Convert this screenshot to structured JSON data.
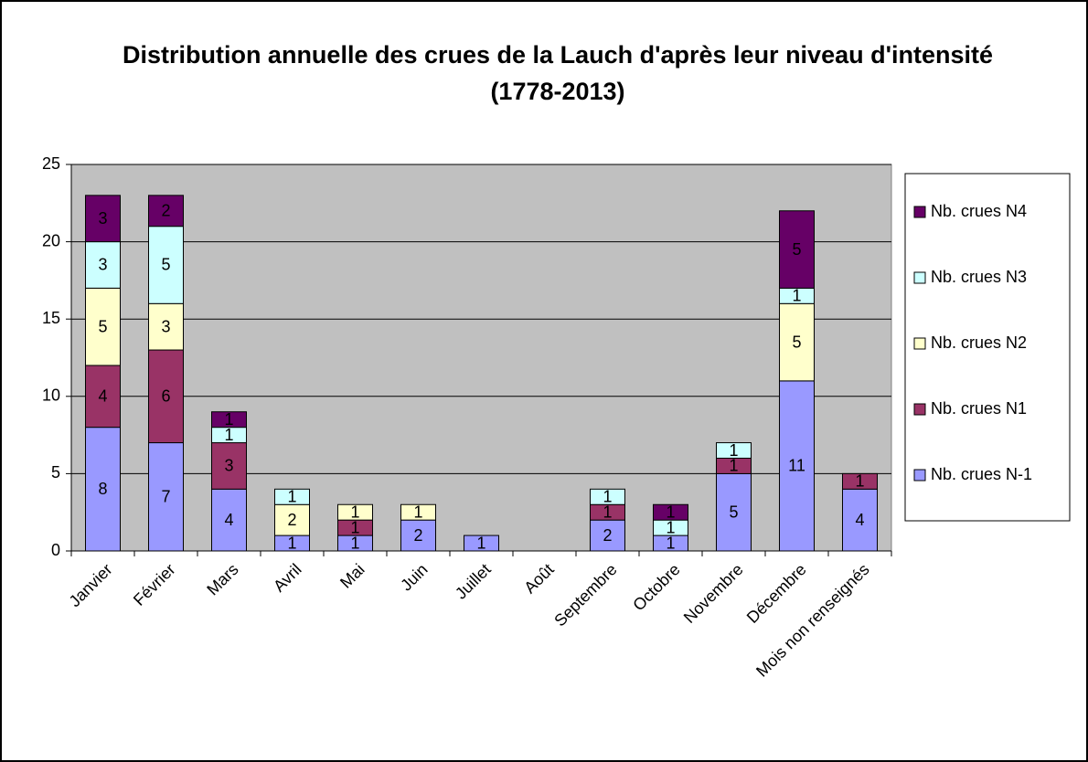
{
  "chart_data": {
    "type": "stacked_bar",
    "title": "Distribution annuelle des crues de la Lauch d'après leur niveau d'intensité (1778-2013)",
    "categories": [
      "Janvier",
      "Février",
      "Mars",
      "Avril",
      "Mai",
      "Juin",
      "Juillet",
      "Août",
      "Septembre",
      "Octobre",
      "Novembre",
      "Décembre",
      "Mois non renseignés"
    ],
    "series": [
      {
        "name": "Nb. crues N-1",
        "color": "#9999ff",
        "values": [
          8,
          7,
          4,
          1,
          1,
          2,
          1,
          null,
          2,
          1,
          5,
          11,
          4
        ]
      },
      {
        "name": "Nb. crues N1",
        "color": "#993366",
        "values": [
          4,
          6,
          3,
          null,
          1,
          null,
          null,
          null,
          1,
          null,
          1,
          null,
          1
        ]
      },
      {
        "name": "Nb. crues N2",
        "color": "#ffffcc",
        "values": [
          5,
          3,
          null,
          2,
          1,
          1,
          null,
          null,
          null,
          null,
          null,
          5,
          null
        ]
      },
      {
        "name": "Nb. crues N3",
        "color": "#ccffff",
        "values": [
          3,
          5,
          1,
          1,
          null,
          null,
          null,
          null,
          1,
          1,
          1,
          1,
          null
        ]
      },
      {
        "name": "Nb. crues N4",
        "color": "#660066",
        "values": [
          3,
          2,
          1,
          null,
          null,
          null,
          null,
          null,
          null,
          1,
          null,
          5,
          null
        ]
      }
    ],
    "ylim": [
      0,
      25
    ],
    "yticks": [
      0,
      5,
      10,
      15,
      20,
      25
    ],
    "grid": true,
    "legend": "right",
    "plot_background": "#c0c0c0"
  }
}
